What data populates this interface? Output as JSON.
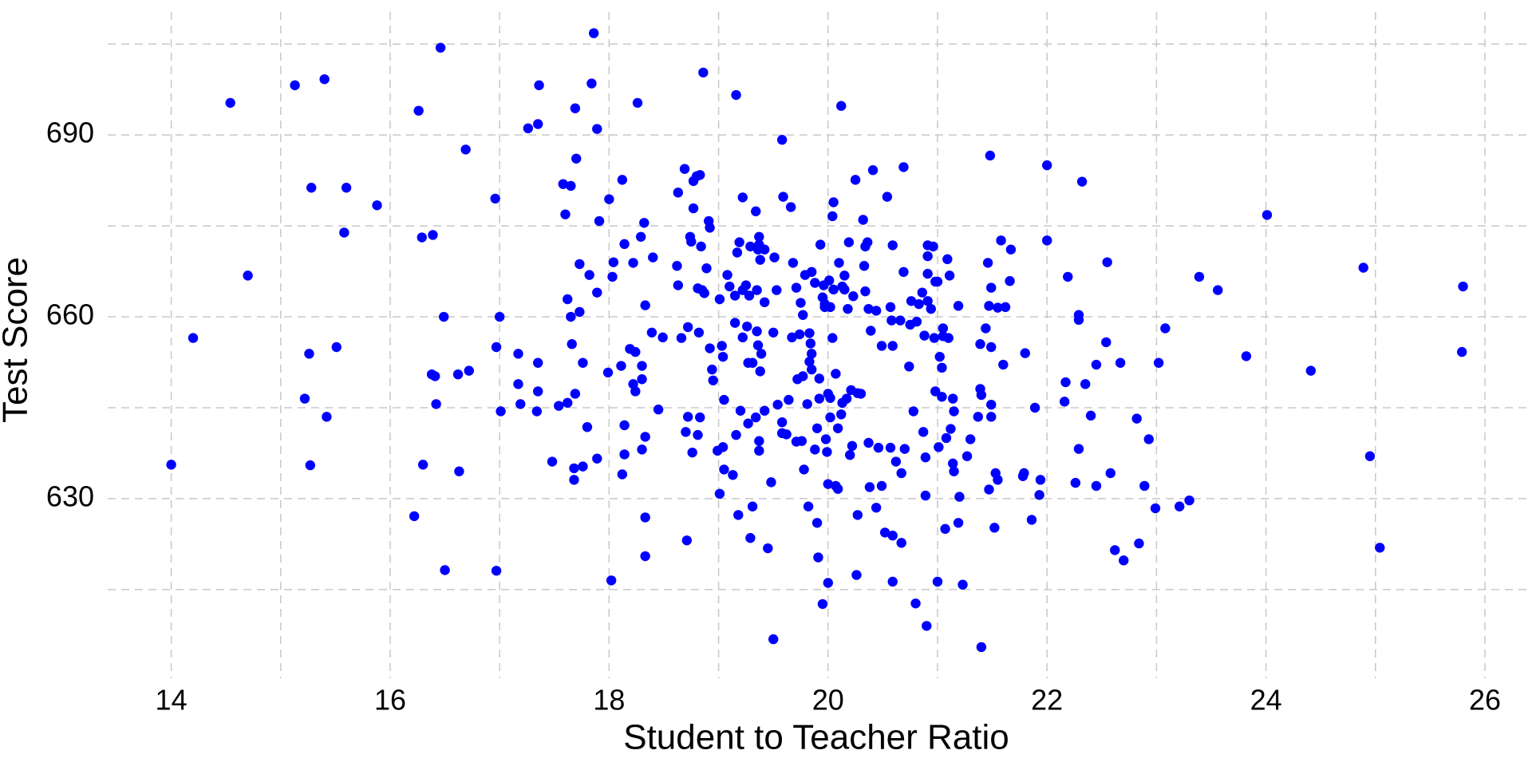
{
  "chart_data": {
    "type": "scatter",
    "x_label": "Student to Teacher Ratio",
    "y_label": "Test Score",
    "color": "#0000ff",
    "grid": true,
    "xlim": [
      13.42,
      26.43
    ],
    "ylim": [
      602.6,
      707.4
    ],
    "xticks": [
      14,
      16,
      18,
      20,
      22,
      24,
      26
    ],
    "yticks": [
      630,
      660,
      690
    ],
    "xticks_minor": [
      15,
      17,
      19,
      21,
      23,
      25
    ],
    "yticks_minor": [
      615,
      645,
      675,
      705
    ],
    "x": [
      14.0,
      14.2,
      14.54,
      14.7,
      15.13,
      15.4,
      15.28,
      15.26,
      15.22,
      15.27,
      15.42,
      15.51,
      15.6,
      15.58,
      15.88,
      16.26,
      16.46,
      16.29,
      16.39,
      16.49,
      16.38,
      16.41,
      16.42,
      16.3,
      16.22,
      16.5,
      16.62,
      16.72,
      16.69,
      16.63,
      16.96,
      17.0,
      16.97,
      17.01,
      16.97,
      17.17,
      17.17,
      17.19,
      17.26,
      17.35,
      17.36,
      17.35,
      17.35,
      17.34,
      17.48,
      17.54,
      17.58,
      17.65,
      17.6,
      17.62,
      17.65,
      17.66,
      17.69,
      17.62,
      17.68,
      17.68,
      17.69,
      17.7,
      17.73,
      17.73,
      17.76,
      17.76,
      17.86,
      17.84,
      17.89,
      17.91,
      17.89,
      17.8,
      17.89,
      17.82,
      18.0,
      18.03,
      18.04,
      17.99,
      18.02,
      18.12,
      18.11,
      18.14,
      18.14,
      18.14,
      18.12,
      18.19,
      18.22,
      18.22,
      18.24,
      18.24,
      18.26,
      18.29,
      18.3,
      18.3,
      18.3,
      18.32,
      18.33,
      18.33,
      18.33,
      18.33,
      18.4,
      18.39,
      18.45,
      18.49,
      18.63,
      18.62,
      18.63,
      18.69,
      18.66,
      18.72,
      18.72,
      18.7,
      18.71,
      18.74,
      18.75,
      18.77,
      18.77,
      18.8,
      18.83,
      18.81,
      18.82,
      18.83,
      18.81,
      18.76,
      18.85,
      18.86,
      18.84,
      18.87,
      18.89,
      18.91,
      18.92,
      18.92,
      18.94,
      18.95,
      18.99,
      19.01,
      19.01,
      19.03,
      19.04,
      19.05,
      19.04,
      19.05,
      19.08,
      19.1,
      19.16,
      19.17,
      19.15,
      19.15,
      19.16,
      19.13,
      19.18,
      19.19,
      19.2,
      19.22,
      19.22,
      19.22,
      19.25,
      19.26,
      19.27,
      19.27,
      19.29,
      19.28,
      19.31,
      19.29,
      19.31,
      19.34,
      19.36,
      19.35,
      19.35,
      19.34,
      19.37,
      19.37,
      19.38,
      19.36,
      19.39,
      19.38,
      19.37,
      19.37,
      19.42,
      19.42,
      19.42,
      19.45,
      19.48,
      19.5,
      19.51,
      19.5,
      19.53,
      19.54,
      19.58,
      19.58,
      19.59,
      19.58,
      19.62,
      19.64,
      19.66,
      19.67,
      19.68,
      19.71,
      19.71,
      19.72,
      19.74,
      19.75,
      19.77,
      19.76,
      19.77,
      19.78,
      19.79,
      19.81,
      19.82,
      19.83,
      19.83,
      19.84,
      19.85,
      19.85,
      19.85,
      19.88,
      19.88,
      19.9,
      19.9,
      19.91,
      19.92,
      19.92,
      19.93,
      19.96,
      19.95,
      19.97,
      19.97,
      19.95,
      19.98,
      19.99,
      20.0,
      20.0,
      20.0,
      20.01,
      20.02,
      20.02,
      20.02,
      20.04,
      20.05,
      20.04,
      20.05,
      20.07,
      20.07,
      20.09,
      20.09,
      20.1,
      20.12,
      20.12,
      20.13,
      20.13,
      20.15,
      20.15,
      20.17,
      20.18,
      20.19,
      20.2,
      20.21,
      20.22,
      20.23,
      20.25,
      20.27,
      20.27,
      20.26,
      20.3,
      20.32,
      20.33,
      20.34,
      20.34,
      20.36,
      20.37,
      20.37,
      20.38,
      20.39,
      20.41,
      20.44,
      20.44,
      20.46,
      20.49,
      20.49,
      20.52,
      20.54,
      20.57,
      20.59,
      20.58,
      20.57,
      20.59,
      20.59,
      20.59,
      20.62,
      20.66,
      20.67,
      20.67,
      20.69,
      20.69,
      20.7,
      20.74,
      20.75,
      20.76,
      20.78,
      20.8,
      20.81,
      20.83,
      20.86,
      20.87,
      20.88,
      20.89,
      20.9,
      20.89,
      20.91,
      20.91,
      20.91,
      20.91,
      20.94,
      20.96,
      20.98,
      20.97,
      20.98,
      21.0,
      21.0,
      21.01,
      21.02,
      21.04,
      21.05,
      21.04,
      21.05,
      21.07,
      21.08,
      21.09,
      21.1,
      21.11,
      21.12,
      21.14,
      21.14,
      21.15,
      21.15,
      21.19,
      21.19,
      21.2,
      21.23,
      21.27,
      21.3,
      21.37,
      21.39,
      21.39,
      21.4,
      21.4,
      21.44,
      21.47,
      21.47,
      21.46,
      21.48,
      21.49,
      21.49,
      21.49,
      21.49,
      21.53,
      21.55,
      21.52,
      21.55,
      21.58,
      21.6,
      21.62,
      21.66,
      21.67,
      21.78,
      21.79,
      21.8,
      21.86,
      21.89,
      21.93,
      21.94,
      22.0,
      22.0,
      22.16,
      22.17,
      22.19,
      22.26,
      22.29,
      22.29,
      22.29,
      22.32,
      22.35,
      22.4,
      22.45,
      22.45,
      22.54,
      22.55,
      22.58,
      22.62,
      22.67,
      22.7,
      22.82,
      22.84,
      22.89,
      22.93,
      22.99,
      23.02,
      23.08,
      23.21,
      23.3,
      23.39,
      23.56,
      23.82,
      24.01,
      24.41,
      24.89,
      24.95,
      25.04,
      25.79,
      25.8
    ],
    "values": [
      635.6,
      656.5,
      695.3,
      666.8,
      698.2,
      699.2,
      681.3,
      653.9,
      646.5,
      635.5,
      643.5,
      655.0,
      681.3,
      673.9,
      678.4,
      694.0,
      704.4,
      673.1,
      673.5,
      660.0,
      650.5,
      650.2,
      645.6,
      635.6,
      627.1,
      618.2,
      650.5,
      651.1,
      687.6,
      634.5,
      679.5,
      660.0,
      655.0,
      644.4,
      618.1,
      653.9,
      648.9,
      645.6,
      691.1,
      691.8,
      698.2,
      652.4,
      647.7,
      644.4,
      636.1,
      645.3,
      681.9,
      681.6,
      676.9,
      662.9,
      660.0,
      655.5,
      647.3,
      645.8,
      635.0,
      633.1,
      694.4,
      686.1,
      668.7,
      660.8,
      652.4,
      635.3,
      706.8,
      698.5,
      691.0,
      675.8,
      664.0,
      641.8,
      636.6,
      666.9,
      679.4,
      666.6,
      669.0,
      650.8,
      616.5,
      682.6,
      651.9,
      672.0,
      642.1,
      637.3,
      634.0,
      654.7,
      668.9,
      648.9,
      654.2,
      647.7,
      695.3,
      673.2,
      651.9,
      649.7,
      638.1,
      675.5,
      661.9,
      640.2,
      626.9,
      620.5,
      669.8,
      657.4,
      644.7,
      656.6,
      680.5,
      668.4,
      665.2,
      684.4,
      656.5,
      658.3,
      643.5,
      641.0,
      623.1,
      673.2,
      672.4,
      677.9,
      682.4,
      683.2,
      683.4,
      664.7,
      657.4,
      643.4,
      640.5,
      637.6,
      664.4,
      700.3,
      671.6,
      663.9,
      668.0,
      675.8,
      674.7,
      654.8,
      651.3,
      649.5,
      637.9,
      630.8,
      662.9,
      655.2,
      653.4,
      646.3,
      638.5,
      634.8,
      666.9,
      665.0,
      696.6,
      670.6,
      663.5,
      659.0,
      640.5,
      633.9,
      627.3,
      672.3,
      644.5,
      664.4,
      656.6,
      679.7,
      665.2,
      658.4,
      642.4,
      652.4,
      671.6,
      663.5,
      652.4,
      623.5,
      628.7,
      677.4,
      671.1,
      664.4,
      657.6,
      643.4,
      673.2,
      671.9,
      669.4,
      655.3,
      653.9,
      651.0,
      639.5,
      637.9,
      671.1,
      662.4,
      644.5,
      621.8,
      632.7,
      606.8,
      669.8,
      657.4,
      664.4,
      645.5,
      689.2,
      642.6,
      679.8,
      640.8,
      640.6,
      646.3,
      678.1,
      656.6,
      668.9,
      664.8,
      639.4,
      649.7,
      657.1,
      662.3,
      650.2,
      639.5,
      660.3,
      634.8,
      666.9,
      645.6,
      628.7,
      652.6,
      657.3,
      655.6,
      667.4,
      653.9,
      651.3,
      665.6,
      638.1,
      641.6,
      626.0,
      620.3,
      646.5,
      649.8,
      671.9,
      665.2,
      663.2,
      661.6,
      662.1,
      612.6,
      639.8,
      637.7,
      647.3,
      632.4,
      616.1,
      666.0,
      661.6,
      646.6,
      643.4,
      676.6,
      678.9,
      656.5,
      664.5,
      650.6,
      632.1,
      631.6,
      641.6,
      668.9,
      694.8,
      643.9,
      665.0,
      645.8,
      666.8,
      664.5,
      646.5,
      661.3,
      672.3,
      637.2,
      647.9,
      638.7,
      663.4,
      682.6,
      647.4,
      627.3,
      617.4,
      647.3,
      676.0,
      668.4,
      671.6,
      664.2,
      672.3,
      661.3,
      639.2,
      631.9,
      657.7,
      684.2,
      661.0,
      628.5,
      638.4,
      632.1,
      655.2,
      624.4,
      679.8,
      661.6,
      671.8,
      659.4,
      638.4,
      623.9,
      616.3,
      655.2,
      636.1,
      659.4,
      634.2,
      622.7,
      667.4,
      684.7,
      638.2,
      651.8,
      658.7,
      662.6,
      644.4,
      612.7,
      659.2,
      662.1,
      664.0,
      641.0,
      656.9,
      630.5,
      609.0,
      636.8,
      667.1,
      670.0,
      671.8,
      662.6,
      661.3,
      671.6,
      665.8,
      656.5,
      647.7,
      665.8,
      616.3,
      638.5,
      653.4,
      651.6,
      656.8,
      646.8,
      658.1,
      625.0,
      640.0,
      669.5,
      656.5,
      666.8,
      641.5,
      635.8,
      646.5,
      634.5,
      644.4,
      661.8,
      626.0,
      630.3,
      615.8,
      637.0,
      639.8,
      643.5,
      648.1,
      655.5,
      647.1,
      605.5,
      658.1,
      661.8,
      631.5,
      668.9,
      686.6,
      664.8,
      655.0,
      645.5,
      643.5,
      634.2,
      633.1,
      625.2,
      661.5,
      672.6,
      652.1,
      661.6,
      665.9,
      671.1,
      633.7,
      634.2,
      654.0,
      626.5,
      645.0,
      630.6,
      633.1,
      685.0,
      672.6,
      646.0,
      649.2,
      666.6,
      632.6,
      638.2,
      659.5,
      660.3,
      682.3,
      648.9,
      643.7,
      652.1,
      632.1,
      655.8,
      669.0,
      634.2,
      621.5,
      652.4,
      619.8,
      643.2,
      622.6,
      632.1,
      639.8,
      628.4,
      652.4,
      658.1,
      628.7,
      629.7,
      666.6,
      664.4,
      653.5,
      676.8,
      651.1,
      668.1,
      637.0,
      621.9,
      654.2,
      665.0
    ]
  }
}
